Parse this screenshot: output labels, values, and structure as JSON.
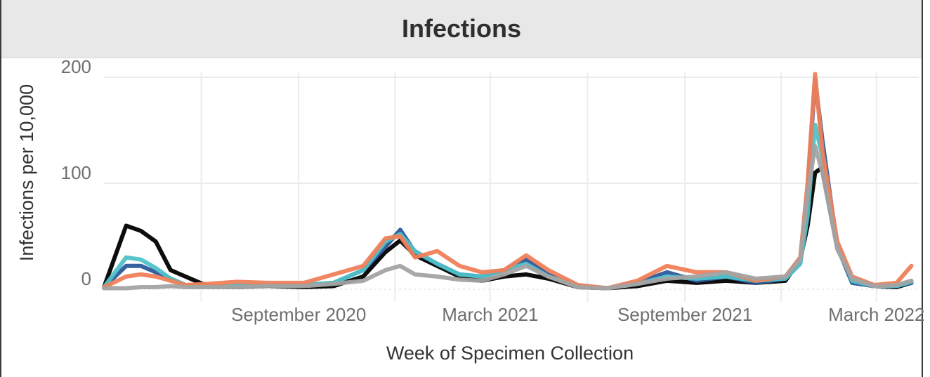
{
  "header": {
    "title": "Infections"
  },
  "chart_data": {
    "type": "line",
    "title": "Infections",
    "xlabel": "Week of Specimen Collection",
    "ylabel": "Infections per 10,000",
    "ylim": [
      0,
      200
    ],
    "xlim": [
      "2020-03-01",
      "2022-04-10"
    ],
    "y_ticks": [
      0,
      100,
      200
    ],
    "y_tick_labels": [
      "0",
      "100",
      "200"
    ],
    "x_ticks": [
      "2020-09-01",
      "2021-03-01",
      "2021-09-01",
      "2022-03-01"
    ],
    "x_tick_labels": [
      "September 2020",
      "March 2021",
      "September 2021",
      "March 2022"
    ],
    "grid": true,
    "colors": {
      "series": [
        "#000000",
        "#2c5a9a",
        "#4fc1c9",
        "#ef7f5a",
        "#a3a3a3"
      ],
      "grid": "#ececec",
      "tick_text": "#6f6f6f"
    },
    "series": [
      {
        "color": "#000000",
        "x": [
          "2020-03-01",
          "2020-03-22",
          "2020-04-05",
          "2020-04-19",
          "2020-05-03",
          "2020-05-17",
          "2020-06-07",
          "2020-07-05",
          "2020-08-02",
          "2020-09-06",
          "2020-10-04",
          "2020-11-01",
          "2020-11-22",
          "2020-12-06",
          "2020-12-20",
          "2021-01-10",
          "2021-01-31",
          "2021-02-21",
          "2021-03-14",
          "2021-04-04",
          "2021-04-25",
          "2021-05-23",
          "2021-06-20",
          "2021-07-18",
          "2021-08-15",
          "2021-09-12",
          "2021-10-10",
          "2021-11-07",
          "2021-12-05",
          "2021-12-19",
          "2021-12-26",
          "2022-01-02",
          "2022-01-09",
          "2022-01-23",
          "2022-02-06",
          "2022-02-27",
          "2022-03-20",
          "2022-04-03"
        ],
        "y": [
          2,
          60,
          55,
          45,
          18,
          12,
          3,
          2,
          3,
          2,
          3,
          12,
          35,
          46,
          32,
          22,
          12,
          8,
          12,
          14,
          10,
          2,
          1,
          3,
          8,
          6,
          8,
          6,
          8,
          28,
          60,
          110,
          115,
          40,
          8,
          3,
          2,
          6
        ]
      },
      {
        "color": "#2c5a9a",
        "x": [
          "2020-03-01",
          "2020-03-22",
          "2020-04-05",
          "2020-04-19",
          "2020-05-03",
          "2020-05-17",
          "2020-06-07",
          "2020-07-05",
          "2020-08-02",
          "2020-09-06",
          "2020-10-04",
          "2020-11-01",
          "2020-11-22",
          "2020-12-06",
          "2020-12-20",
          "2021-01-10",
          "2021-01-31",
          "2021-02-21",
          "2021-03-14",
          "2021-04-04",
          "2021-04-25",
          "2021-05-23",
          "2021-06-20",
          "2021-07-18",
          "2021-08-15",
          "2021-09-12",
          "2021-10-10",
          "2021-11-07",
          "2021-12-05",
          "2021-12-19",
          "2021-12-26",
          "2022-01-02",
          "2022-01-09",
          "2022-01-23",
          "2022-02-06",
          "2022-02-27",
          "2022-03-20",
          "2022-04-03"
        ],
        "y": [
          2,
          22,
          22,
          16,
          10,
          4,
          3,
          3,
          4,
          4,
          6,
          18,
          40,
          56,
          35,
          24,
          14,
          12,
          18,
          28,
          14,
          3,
          1,
          6,
          16,
          8,
          12,
          6,
          10,
          26,
          95,
          198,
          140,
          40,
          6,
          3,
          3,
          6
        ]
      },
      {
        "color": "#4fc1c9",
        "x": [
          "2020-03-01",
          "2020-03-22",
          "2020-04-05",
          "2020-04-19",
          "2020-05-03",
          "2020-05-17",
          "2020-06-07",
          "2020-07-05",
          "2020-08-02",
          "2020-09-06",
          "2020-10-04",
          "2020-11-01",
          "2020-11-22",
          "2020-12-06",
          "2020-12-20",
          "2021-01-10",
          "2021-01-31",
          "2021-02-21",
          "2021-03-14",
          "2021-04-04",
          "2021-04-25",
          "2021-05-23",
          "2021-06-20",
          "2021-07-18",
          "2021-08-15",
          "2021-09-12",
          "2021-10-10",
          "2021-11-07",
          "2021-12-05",
          "2021-12-19",
          "2021-12-26",
          "2022-01-02",
          "2022-01-09",
          "2022-01-23",
          "2022-02-06",
          "2022-02-27",
          "2022-03-20",
          "2022-04-03"
        ],
        "y": [
          2,
          30,
          28,
          20,
          10,
          4,
          3,
          3,
          4,
          4,
          6,
          18,
          45,
          52,
          36,
          24,
          14,
          12,
          18,
          24,
          12,
          3,
          1,
          5,
          12,
          10,
          12,
          8,
          10,
          24,
          70,
          155,
          125,
          42,
          8,
          3,
          3,
          7
        ]
      },
      {
        "color": "#ef7f5a",
        "x": [
          "2020-03-01",
          "2020-03-22",
          "2020-04-05",
          "2020-04-19",
          "2020-05-03",
          "2020-05-17",
          "2020-06-07",
          "2020-07-05",
          "2020-08-02",
          "2020-09-06",
          "2020-10-04",
          "2020-11-01",
          "2020-11-22",
          "2020-12-06",
          "2020-12-20",
          "2021-01-10",
          "2021-01-31",
          "2021-02-21",
          "2021-03-14",
          "2021-04-04",
          "2021-04-25",
          "2021-05-23",
          "2021-06-20",
          "2021-07-18",
          "2021-08-15",
          "2021-09-12",
          "2021-10-10",
          "2021-11-07",
          "2021-12-05",
          "2021-12-19",
          "2021-12-26",
          "2022-01-02",
          "2022-01-09",
          "2022-01-23",
          "2022-02-06",
          "2022-02-27",
          "2022-03-20",
          "2022-04-03"
        ],
        "y": [
          2,
          12,
          14,
          12,
          8,
          4,
          5,
          7,
          6,
          6,
          14,
          22,
          48,
          50,
          30,
          36,
          22,
          16,
          18,
          32,
          18,
          4,
          1,
          8,
          22,
          16,
          16,
          8,
          12,
          30,
          100,
          203,
          130,
          45,
          12,
          4,
          6,
          22
        ]
      },
      {
        "color": "#a3a3a3",
        "x": [
          "2020-03-01",
          "2020-03-22",
          "2020-04-05",
          "2020-04-19",
          "2020-05-03",
          "2020-05-17",
          "2020-06-07",
          "2020-07-05",
          "2020-08-02",
          "2020-09-06",
          "2020-10-04",
          "2020-11-01",
          "2020-11-22",
          "2020-12-06",
          "2020-12-20",
          "2021-01-10",
          "2021-01-31",
          "2021-02-21",
          "2021-03-14",
          "2021-04-04",
          "2021-04-25",
          "2021-05-23",
          "2021-06-20",
          "2021-07-18",
          "2021-08-15",
          "2021-09-12",
          "2021-10-10",
          "2021-11-07",
          "2021-12-05",
          "2021-12-19",
          "2021-12-26",
          "2022-01-02",
          "2022-01-09",
          "2022-01-23",
          "2022-02-06",
          "2022-02-27",
          "2022-03-20",
          "2022-04-03"
        ],
        "y": [
          1,
          1,
          2,
          2,
          3,
          2,
          2,
          2,
          3,
          3,
          5,
          8,
          18,
          22,
          14,
          12,
          9,
          8,
          14,
          22,
          12,
          2,
          1,
          5,
          10,
          12,
          16,
          10,
          12,
          28,
          90,
          135,
          110,
          38,
          10,
          3,
          4,
          8
        ]
      }
    ]
  }
}
